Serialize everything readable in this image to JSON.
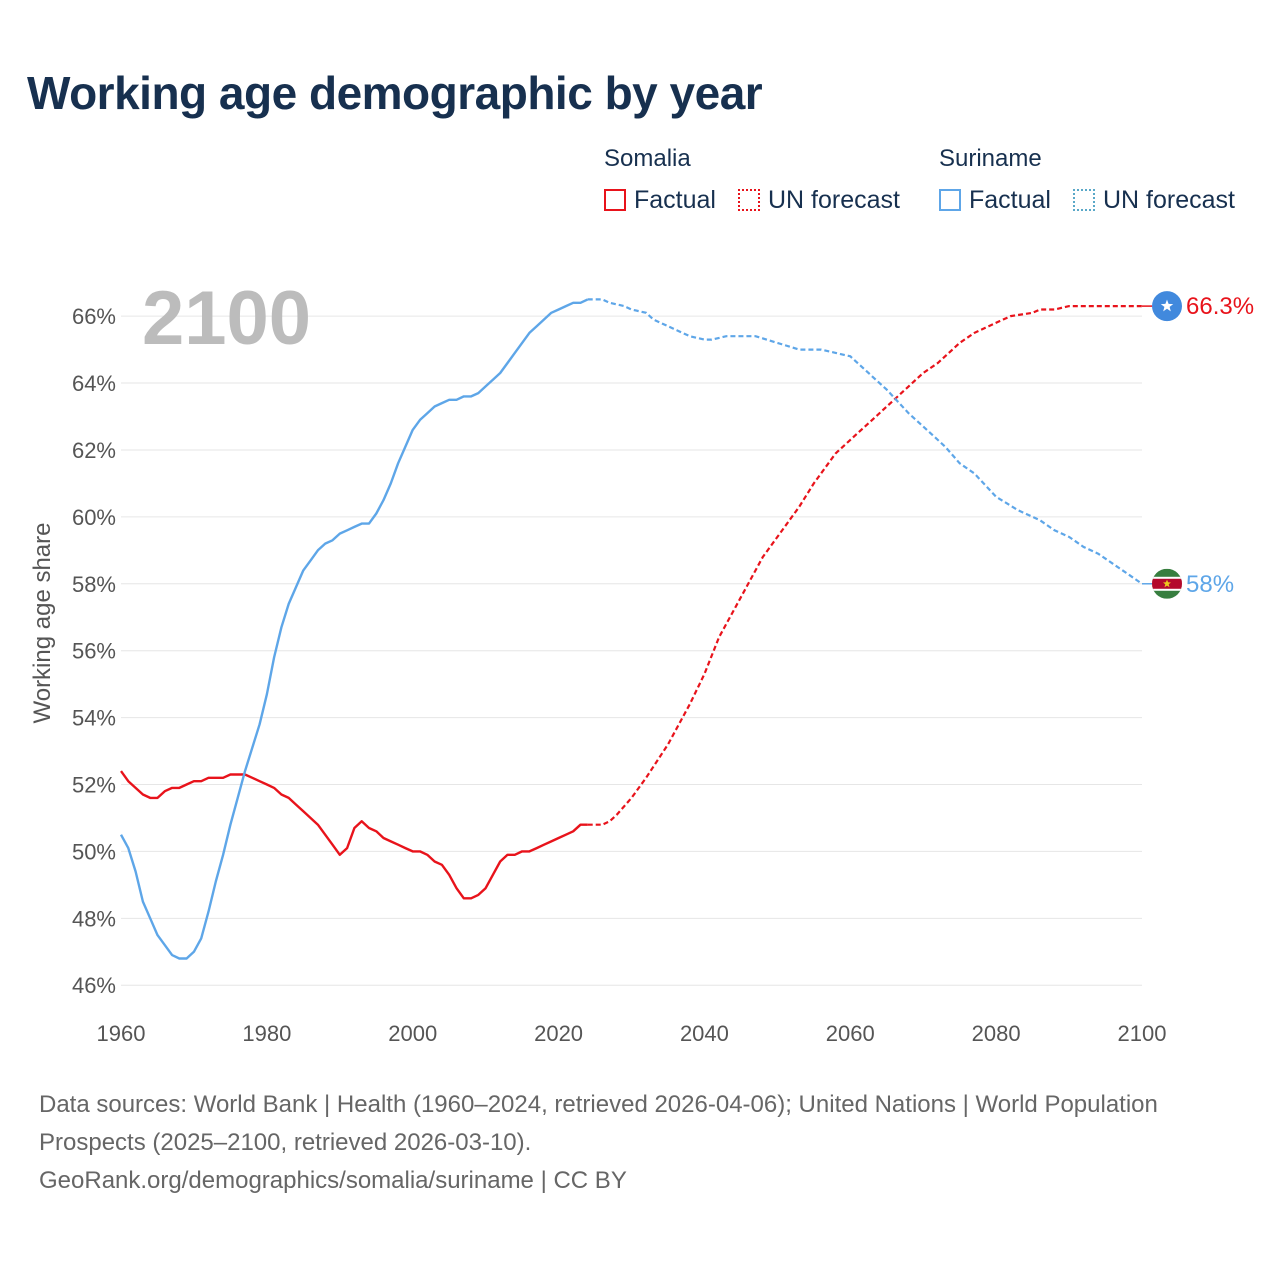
{
  "title": "Working age demographic by year",
  "legend": {
    "groups": [
      {
        "name": "Somalia",
        "color": "#e8131b",
        "factual": "Factual",
        "forecast": "UN forecast"
      },
      {
        "name": "Suriname",
        "color": "#5ea6e8",
        "factual": "Factual",
        "forecast": "UN forecast"
      }
    ]
  },
  "current_year": "2100",
  "footer": {
    "sources": "Data sources: World Bank | Health (1960–2024, retrieved 2026-04-06); United Nations | World Population Prospects (2025–2100, retrieved 2026-03-10).",
    "credit": "GeoRank.org/demographics/somalia/suriname | CC BY"
  },
  "chart_data": {
    "type": "line",
    "title": "Working age demographic by year",
    "xlabel": "",
    "ylabel": "Working age share",
    "xlim": [
      1960,
      2100
    ],
    "ylim": [
      45.2,
      67.2
    ],
    "x_ticks": [
      1960,
      1980,
      2000,
      2020,
      2040,
      2060,
      2080,
      2100
    ],
    "x_tick_labels": [
      "1960",
      "1980",
      "2000",
      "2020",
      "2040",
      "2060",
      "2080",
      "2100"
    ],
    "y_ticks": [
      46,
      48,
      50,
      52,
      54,
      56,
      58,
      60,
      62,
      64,
      66
    ],
    "y_tick_labels": [
      "46%",
      "48%",
      "50%",
      "52%",
      "54%",
      "56%",
      "58%",
      "60%",
      "62%",
      "64%",
      "66%"
    ],
    "grid": true,
    "factual_end_year": 2024,
    "series": [
      {
        "name": "Somalia",
        "color": "#e8131b",
        "end_label": "66.3%",
        "points": [
          [
            1960,
            52.4
          ],
          [
            1961,
            52.1
          ],
          [
            1962,
            51.9
          ],
          [
            1963,
            51.7
          ],
          [
            1964,
            51.6
          ],
          [
            1965,
            51.6
          ],
          [
            1966,
            51.8
          ],
          [
            1967,
            51.9
          ],
          [
            1968,
            51.9
          ],
          [
            1969,
            52.0
          ],
          [
            1970,
            52.1
          ],
          [
            1971,
            52.1
          ],
          [
            1972,
            52.2
          ],
          [
            1973,
            52.2
          ],
          [
            1974,
            52.2
          ],
          [
            1975,
            52.3
          ],
          [
            1976,
            52.3
          ],
          [
            1977,
            52.3
          ],
          [
            1978,
            52.2
          ],
          [
            1979,
            52.1
          ],
          [
            1980,
            52.0
          ],
          [
            1981,
            51.9
          ],
          [
            1982,
            51.7
          ],
          [
            1983,
            51.6
          ],
          [
            1984,
            51.4
          ],
          [
            1985,
            51.2
          ],
          [
            1986,
            51.0
          ],
          [
            1987,
            50.8
          ],
          [
            1988,
            50.5
          ],
          [
            1989,
            50.2
          ],
          [
            1990,
            49.9
          ],
          [
            1991,
            50.1
          ],
          [
            1992,
            50.7
          ],
          [
            1993,
            50.9
          ],
          [
            1994,
            50.7
          ],
          [
            1995,
            50.6
          ],
          [
            1996,
            50.4
          ],
          [
            1997,
            50.3
          ],
          [
            1998,
            50.2
          ],
          [
            1999,
            50.1
          ],
          [
            2000,
            50.0
          ],
          [
            2001,
            50.0
          ],
          [
            2002,
            49.9
          ],
          [
            2003,
            49.7
          ],
          [
            2004,
            49.6
          ],
          [
            2005,
            49.3
          ],
          [
            2006,
            48.9
          ],
          [
            2007,
            48.6
          ],
          [
            2008,
            48.6
          ],
          [
            2009,
            48.7
          ],
          [
            2010,
            48.9
          ],
          [
            2011,
            49.3
          ],
          [
            2012,
            49.7
          ],
          [
            2013,
            49.9
          ],
          [
            2014,
            49.9
          ],
          [
            2015,
            50.0
          ],
          [
            2016,
            50.0
          ],
          [
            2017,
            50.1
          ],
          [
            2018,
            50.2
          ],
          [
            2019,
            50.3
          ],
          [
            2020,
            50.4
          ],
          [
            2021,
            50.5
          ],
          [
            2022,
            50.6
          ],
          [
            2023,
            50.8
          ],
          [
            2024,
            50.8
          ],
          [
            2025,
            50.8
          ],
          [
            2026,
            50.8
          ],
          [
            2027,
            50.9
          ],
          [
            2028,
            51.1
          ],
          [
            2030,
            51.6
          ],
          [
            2032,
            52.2
          ],
          [
            2035,
            53.2
          ],
          [
            2038,
            54.4
          ],
          [
            2040,
            55.3
          ],
          [
            2042,
            56.4
          ],
          [
            2045,
            57.6
          ],
          [
            2048,
            58.8
          ],
          [
            2050,
            59.4
          ],
          [
            2053,
            60.3
          ],
          [
            2055,
            61.0
          ],
          [
            2058,
            61.9
          ],
          [
            2060,
            62.3
          ],
          [
            2063,
            62.9
          ],
          [
            2065,
            63.3
          ],
          [
            2068,
            63.9
          ],
          [
            2070,
            64.3
          ],
          [
            2072,
            64.6
          ],
          [
            2075,
            65.2
          ],
          [
            2077,
            65.5
          ],
          [
            2080,
            65.8
          ],
          [
            2082,
            66.0
          ],
          [
            2085,
            66.1
          ],
          [
            2086,
            66.2
          ],
          [
            2088,
            66.2
          ],
          [
            2090,
            66.3
          ],
          [
            2095,
            66.3
          ],
          [
            2100,
            66.3
          ]
        ]
      },
      {
        "name": "Suriname",
        "color": "#5ea6e8",
        "end_label": "58%",
        "points": [
          [
            1960,
            50.5
          ],
          [
            1961,
            50.1
          ],
          [
            1962,
            49.4
          ],
          [
            1963,
            48.5
          ],
          [
            1964,
            48.0
          ],
          [
            1965,
            47.5
          ],
          [
            1966,
            47.2
          ],
          [
            1967,
            46.9
          ],
          [
            1968,
            46.8
          ],
          [
            1969,
            46.8
          ],
          [
            1970,
            47.0
          ],
          [
            1971,
            47.4
          ],
          [
            1972,
            48.2
          ],
          [
            1973,
            49.1
          ],
          [
            1974,
            49.9
          ],
          [
            1975,
            50.8
          ],
          [
            1976,
            51.6
          ],
          [
            1977,
            52.4
          ],
          [
            1978,
            53.1
          ],
          [
            1979,
            53.8
          ],
          [
            1980,
            54.7
          ],
          [
            1981,
            55.8
          ],
          [
            1982,
            56.7
          ],
          [
            1983,
            57.4
          ],
          [
            1984,
            57.9
          ],
          [
            1985,
            58.4
          ],
          [
            1986,
            58.7
          ],
          [
            1987,
            59.0
          ],
          [
            1988,
            59.2
          ],
          [
            1989,
            59.3
          ],
          [
            1990,
            59.5
          ],
          [
            1991,
            59.6
          ],
          [
            1992,
            59.7
          ],
          [
            1993,
            59.8
          ],
          [
            1994,
            59.8
          ],
          [
            1995,
            60.1
          ],
          [
            1996,
            60.5
          ],
          [
            1997,
            61.0
          ],
          [
            1998,
            61.6
          ],
          [
            1999,
            62.1
          ],
          [
            2000,
            62.6
          ],
          [
            2001,
            62.9
          ],
          [
            2002,
            63.1
          ],
          [
            2003,
            63.3
          ],
          [
            2004,
            63.4
          ],
          [
            2005,
            63.5
          ],
          [
            2006,
            63.5
          ],
          [
            2007,
            63.6
          ],
          [
            2008,
            63.6
          ],
          [
            2009,
            63.7
          ],
          [
            2010,
            63.9
          ],
          [
            2011,
            64.1
          ],
          [
            2012,
            64.3
          ],
          [
            2013,
            64.6
          ],
          [
            2014,
            64.9
          ],
          [
            2015,
            65.2
          ],
          [
            2016,
            65.5
          ],
          [
            2017,
            65.7
          ],
          [
            2018,
            65.9
          ],
          [
            2019,
            66.1
          ],
          [
            2020,
            66.2
          ],
          [
            2021,
            66.3
          ],
          [
            2022,
            66.4
          ],
          [
            2023,
            66.4
          ],
          [
            2024,
            66.5
          ],
          [
            2025,
            66.5
          ],
          [
            2026,
            66.5
          ],
          [
            2027,
            66.4
          ],
          [
            2029,
            66.3
          ],
          [
            2030,
            66.2
          ],
          [
            2032,
            66.1
          ],
          [
            2033,
            65.9
          ],
          [
            2035,
            65.7
          ],
          [
            2038,
            65.4
          ],
          [
            2040,
            65.3
          ],
          [
            2041,
            65.3
          ],
          [
            2043,
            65.4
          ],
          [
            2047,
            65.4
          ],
          [
            2050,
            65.2
          ],
          [
            2053,
            65.0
          ],
          [
            2056,
            65.0
          ],
          [
            2058,
            64.9
          ],
          [
            2060,
            64.8
          ],
          [
            2062,
            64.4
          ],
          [
            2065,
            63.8
          ],
          [
            2068,
            63.1
          ],
          [
            2070,
            62.7
          ],
          [
            2073,
            62.1
          ],
          [
            2075,
            61.6
          ],
          [
            2077,
            61.3
          ],
          [
            2080,
            60.6
          ],
          [
            2083,
            60.2
          ],
          [
            2086,
            59.9
          ],
          [
            2088,
            59.6
          ],
          [
            2090,
            59.4
          ],
          [
            2092,
            59.1
          ],
          [
            2094,
            58.9
          ],
          [
            2096,
            58.6
          ],
          [
            2098,
            58.3
          ],
          [
            2100,
            58.0
          ]
        ]
      }
    ]
  }
}
